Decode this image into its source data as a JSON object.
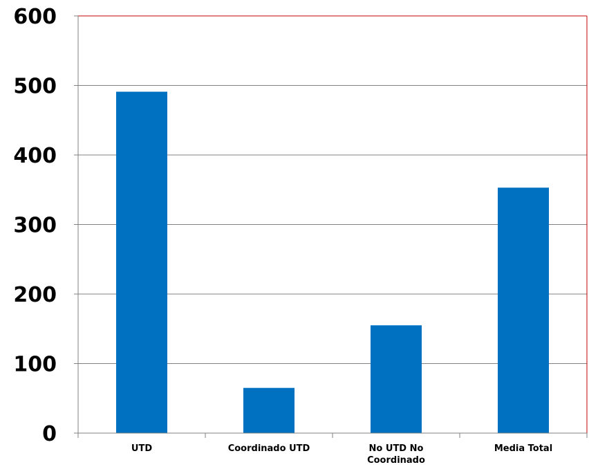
{
  "chart_data": {
    "type": "bar",
    "title": "",
    "xlabel": "",
    "ylabel": "",
    "categories": [
      "UTD",
      "Coordinado UTD",
      "No UTD No Coordinado",
      "Media Total"
    ],
    "category_label_lines": [
      [
        "UTD"
      ],
      [
        "Coordinado UTD"
      ],
      [
        "No UTD No",
        "Coordinado"
      ],
      [
        "Media Total"
      ]
    ],
    "values": [
      491,
      65,
      155,
      353
    ],
    "ylim": [
      0,
      600
    ],
    "yticks": [
      "0",
      "100",
      "200",
      "300",
      "400",
      "500",
      "600"
    ],
    "grid": true,
    "legend": "none",
    "colors": {
      "bar": "#0070C0",
      "grid": "#808080",
      "plot_border": "#C00000",
      "axis": "#808080"
    }
  }
}
